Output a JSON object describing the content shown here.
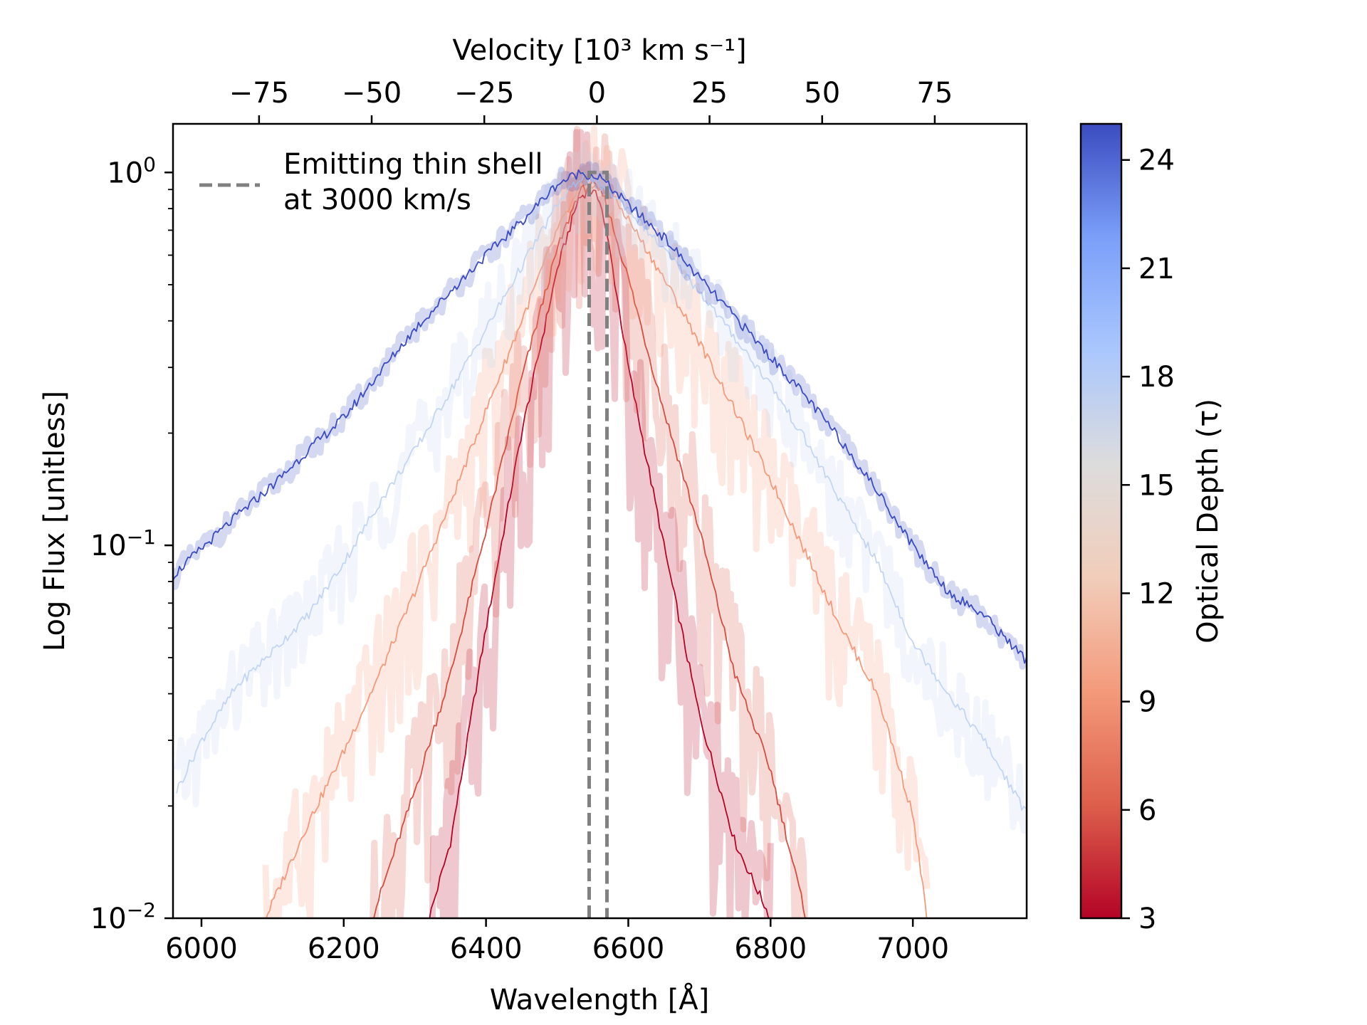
{
  "chart_data": {
    "type": "line",
    "xlabel": "Wavelength [Å]",
    "ylabel": "Log Flux [unitless]",
    "top_xlabel": "Velocity [10³ km s⁻¹]",
    "colorbar_label": "Optical Depth (τ)",
    "xlim": [
      5960,
      7160
    ],
    "ylim": [
      0.01,
      1.35
    ],
    "yscale": "log",
    "top_xlim": [
      -94.1,
      95.4
    ],
    "x_ticks": [
      6000,
      6200,
      6400,
      6600,
      6800,
      7000
    ],
    "x_tick_labels": [
      "6000",
      "6200",
      "6400",
      "6600",
      "6800",
      "7000"
    ],
    "top_ticks": [
      -75,
      -50,
      -25,
      0,
      25,
      50,
      75
    ],
    "top_tick_labels": [
      "−75",
      "−50",
      "−25",
      "0",
      "25",
      "50",
      "75"
    ],
    "y_ticks": [
      0.01,
      0.1,
      1
    ],
    "y_tick_labels": [
      [
        "10",
        "−2"
      ],
      [
        "10",
        "−1"
      ],
      [
        "10",
        "0"
      ]
    ],
    "colorbar": {
      "range": [
        3,
        25
      ],
      "ticks": [
        3,
        6,
        9,
        12,
        15,
        18,
        21,
        24
      ],
      "tick_labels": [
        "3",
        "6",
        "9",
        "12",
        "15",
        "18",
        "21",
        "24"
      ],
      "colors": [
        "#b40426",
        "#dd5f4b",
        "#f49a7b",
        "#f1cdba",
        "#dddcdc",
        "#aac7fd",
        "#7b9ff9",
        "#3b4cc0"
      ]
    },
    "legend": {
      "location": "top-left",
      "lines": [
        "Emitting thin shell",
        "at 3000 km/s"
      ],
      "color": "#808080"
    },
    "thin_shell": {
      "x_left": 6545,
      "x_right": 6570,
      "top": 1.0,
      "bottom": 0.01
    },
    "series": [
      {
        "name": "tau=3",
        "tau": 3,
        "color": "#b40426",
        "peak_x": 6545,
        "x": [
          6320,
          6350,
          6400,
          6450,
          6500,
          6530,
          6545,
          6560,
          6575,
          6600,
          6650,
          6700,
          6750,
          6800
        ],
        "y": [
          0.01,
          0.016,
          0.06,
          0.2,
          0.55,
          0.85,
          0.9,
          0.85,
          0.6,
          0.3,
          0.1,
          0.035,
          0.016,
          0.01
        ]
      },
      {
        "name": "tau=5",
        "tau": 5,
        "color": "#d44e41",
        "peak_x": 6547,
        "x": [
          6240,
          6300,
          6350,
          6400,
          6450,
          6500,
          6530,
          6547,
          6565,
          6600,
          6650,
          6700,
          6750,
          6800,
          6850
        ],
        "y": [
          0.01,
          0.022,
          0.045,
          0.11,
          0.28,
          0.62,
          0.88,
          0.93,
          0.87,
          0.52,
          0.23,
          0.11,
          0.045,
          0.025,
          0.01
        ]
      },
      {
        "name": "tau=9",
        "tau": 9,
        "color": "#f49a7b",
        "peak_x": 6540,
        "x": [
          6090,
          6150,
          6200,
          6250,
          6300,
          6350,
          6400,
          6450,
          6500,
          6540,
          6580,
          6600,
          6650,
          6700,
          6750,
          6800,
          6850,
          6900,
          6950,
          7000,
          7020
        ],
        "y": [
          0.01,
          0.018,
          0.028,
          0.045,
          0.075,
          0.13,
          0.23,
          0.4,
          0.7,
          0.96,
          0.85,
          0.75,
          0.52,
          0.35,
          0.23,
          0.15,
          0.095,
          0.06,
          0.04,
          0.019,
          0.01
        ]
      },
      {
        "name": "tau=16",
        "tau": 16,
        "color": "#c4d5f3",
        "peak_x": 6535,
        "x": [
          5965,
          6000,
          6050,
          6100,
          6150,
          6200,
          6250,
          6300,
          6350,
          6400,
          6450,
          6500,
          6535,
          6570,
          6600,
          6650,
          6700,
          6750,
          6800,
          6850,
          6900,
          6950,
          7000,
          7050,
          7100,
          7160
        ],
        "y": [
          0.022,
          0.03,
          0.042,
          0.052,
          0.065,
          0.09,
          0.13,
          0.18,
          0.26,
          0.38,
          0.56,
          0.82,
          0.98,
          0.9,
          0.8,
          0.62,
          0.48,
          0.36,
          0.27,
          0.19,
          0.13,
          0.09,
          0.055,
          0.04,
          0.03,
          0.019
        ]
      },
      {
        "name": "tau=25",
        "tau": 25,
        "color": "#3b4cc0",
        "peak_x": 6532,
        "x": [
          5960,
          6000,
          6050,
          6100,
          6150,
          6200,
          6250,
          6300,
          6350,
          6400,
          6450,
          6500,
          6532,
          6560,
          6600,
          6650,
          6700,
          6750,
          6800,
          6850,
          6900,
          6950,
          7000,
          7050,
          7100,
          7160
        ],
        "y": [
          0.083,
          0.098,
          0.12,
          0.145,
          0.18,
          0.22,
          0.29,
          0.38,
          0.48,
          0.6,
          0.74,
          0.93,
          1.0,
          0.97,
          0.82,
          0.67,
          0.52,
          0.41,
          0.32,
          0.25,
          0.19,
          0.14,
          0.1,
          0.075,
          0.065,
          0.049
        ]
      }
    ]
  }
}
